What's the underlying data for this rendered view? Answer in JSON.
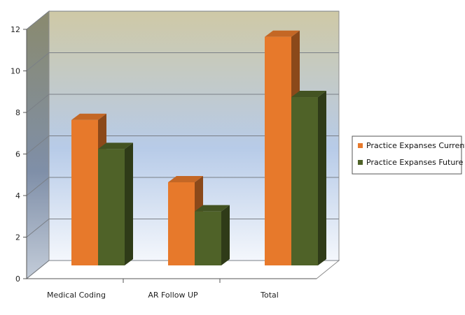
{
  "chart_data": {
    "type": "bar",
    "style": "3d-clustered-column",
    "categories": [
      "Medical Coding",
      "AR Follow UP",
      "Total"
    ],
    "series": [
      {
        "name": "Practice Expanses Current",
        "values": [
          7,
          4,
          11
        ],
        "color": "#e7792b"
      },
      {
        "name": "Practice Expanses Future",
        "values": [
          5.6,
          2.6,
          8.1
        ],
        "color": "#4f6228"
      }
    ],
    "y_ticks": [
      "0",
      "2",
      "4",
      "6",
      "8",
      "10",
      "12"
    ],
    "ylim": [
      0,
      12
    ],
    "grid": true,
    "legend_position": "right",
    "background": {
      "top_color": "#cfc9a6",
      "bottom_color": "#ffffff",
      "mid_color": "#b7cbe8"
    }
  }
}
